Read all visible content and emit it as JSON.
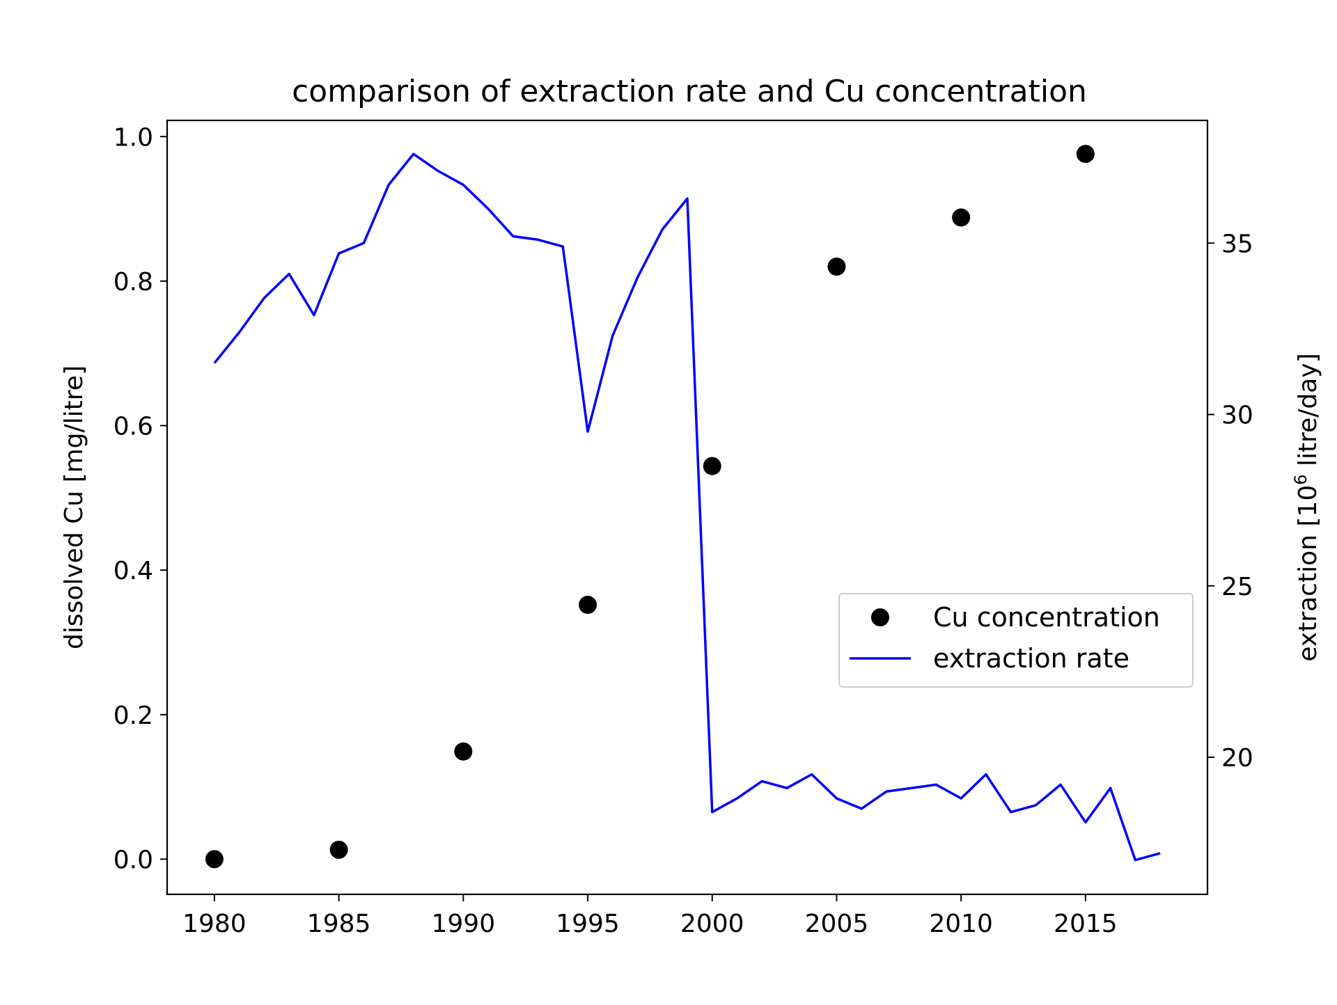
{
  "chart_data": {
    "type": "scatter+line (dual y-axis)",
    "title": "comparison of extraction rate and Cu concentration",
    "xlabel": "",
    "ylabel_left": "dissolved Cu [mg/litre]",
    "ylabel_right": {
      "text_before": "extraction [10",
      "superscript": "6",
      "text_after": " litre/day]"
    },
    "xlim": [
      1978.1,
      2019.9
    ],
    "ylim_left": [
      -0.0487,
      1.0224
    ],
    "ylim_right": [
      16.0,
      38.58
    ],
    "x_ticks": [
      "1980",
      "1985",
      "1990",
      "1995",
      "2000",
      "2005",
      "2010",
      "2015"
    ],
    "x_tick_values": [
      1980,
      1985,
      1990,
      1995,
      2000,
      2005,
      2010,
      2015
    ],
    "y_left_ticks": [
      "0.0",
      "0.2",
      "0.4",
      "0.6",
      "0.8",
      "1.0"
    ],
    "y_left_tick_values": [
      0.0,
      0.2,
      0.4,
      0.6,
      0.8,
      1.0
    ],
    "y_right_ticks": [
      "20",
      "25",
      "30",
      "35"
    ],
    "y_right_tick_values": [
      20,
      25,
      30,
      35
    ],
    "grid": false,
    "legend_position": "center-right",
    "series": [
      {
        "name": "Cu concentration",
        "kind": "scatter",
        "axis": "left",
        "color": "#000000",
        "x": [
          1980,
          1985,
          1990,
          1995,
          2000,
          2005,
          2010,
          2015
        ],
        "y": [
          0.0,
          0.013,
          0.149,
          0.352,
          0.544,
          0.82,
          0.888,
          0.976
        ]
      },
      {
        "name": "extraction rate",
        "kind": "line",
        "axis": "right",
        "color": "#0000ff",
        "x": [
          1980,
          1981,
          1982,
          1983,
          1984,
          1985,
          1986,
          1987,
          1988,
          1989,
          1990,
          1991,
          1992,
          1993,
          1994,
          1995,
          1996,
          1997,
          1998,
          1999,
          2000,
          2001,
          2002,
          2003,
          2004,
          2005,
          2006,
          2007,
          2008,
          2009,
          2010,
          2011,
          2012,
          2013,
          2014,
          2015,
          2016,
          2017,
          2018
        ],
        "y": [
          31.5,
          32.4,
          33.4,
          34.1,
          32.9,
          34.7,
          35.0,
          36.7,
          37.6,
          37.1,
          36.7,
          36.0,
          35.2,
          35.1,
          34.9,
          29.5,
          32.3,
          34.0,
          35.4,
          36.3,
          18.4,
          18.8,
          19.3,
          19.1,
          19.5,
          18.8,
          18.5,
          19.0,
          19.1,
          19.2,
          18.8,
          19.5,
          18.4,
          18.6,
          19.2,
          18.1,
          19.1,
          17.0,
          17.2
        ]
      }
    ]
  }
}
